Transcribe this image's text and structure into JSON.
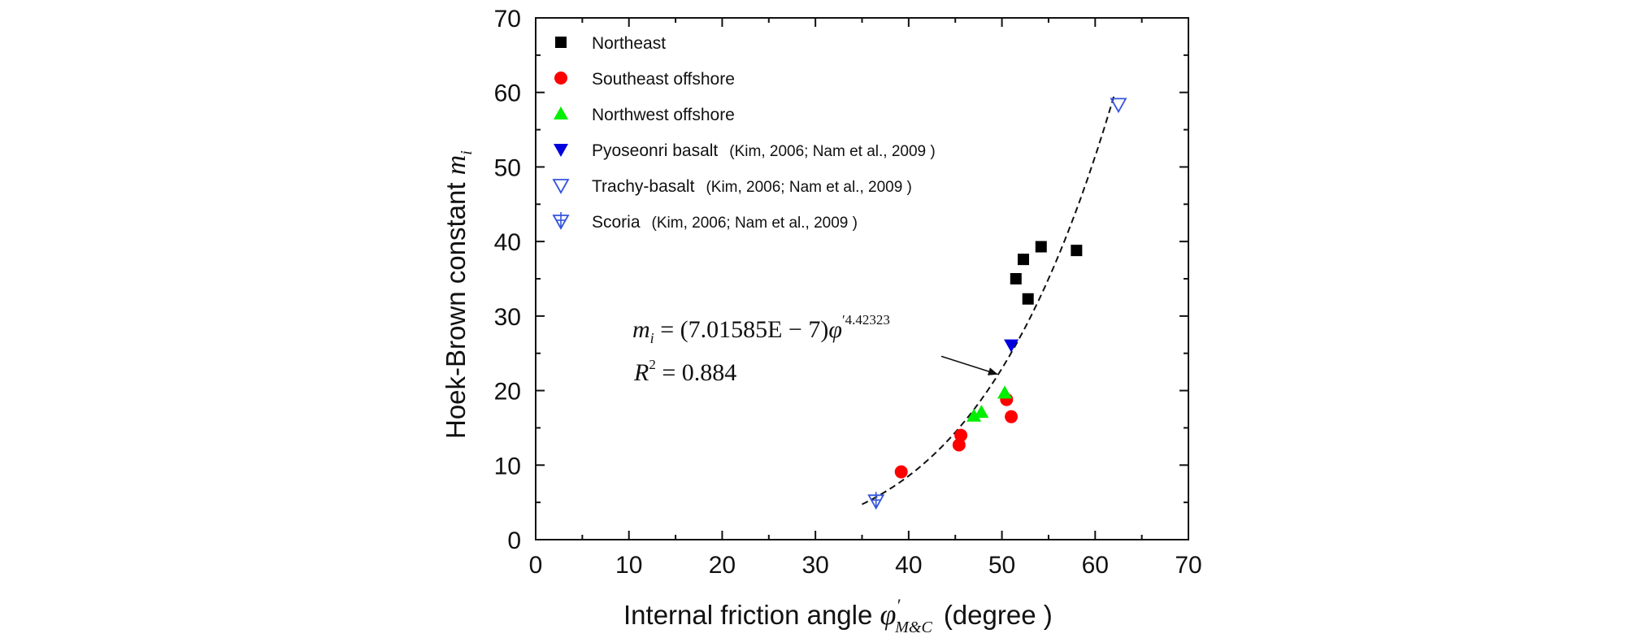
{
  "chart_data": {
    "type": "scatter",
    "title": "",
    "xlabel": "Internal friction angle φ'_M&C (degree)",
    "xlabel_parts": {
      "main": "Internal friction angle ",
      "symbol": "φ",
      "prime": "′",
      "subscript": "M&C",
      "unit": "(degree )"
    },
    "ylabel": "Hoek-Brown constant m_i",
    "ylabel_parts": {
      "main": "Hoek-Brown constant ",
      "symbol": "m",
      "subscript": "i"
    },
    "xlim": [
      0,
      70
    ],
    "ylim": [
      0,
      70
    ],
    "xticks": [
      "0",
      "10",
      "20",
      "30",
      "40",
      "50",
      "60",
      "70"
    ],
    "yticks": [
      "0",
      "10",
      "20",
      "30",
      "40",
      "50",
      "60",
      "70"
    ],
    "grid": false,
    "legend_position": "top-left",
    "series": [
      {
        "name": "Northeast",
        "cite": "",
        "marker": "square-filled",
        "color": "#000000",
        "points": [
          [
            51.5,
            35.0
          ],
          [
            52.3,
            37.6
          ],
          [
            52.8,
            32.3
          ],
          [
            54.2,
            39.3
          ],
          [
            58.0,
            38.8
          ]
        ]
      },
      {
        "name": "Southeast offshore",
        "cite": "",
        "marker": "circle-filled",
        "color": "#ff0000",
        "points": [
          [
            39.2,
            9.1
          ],
          [
            45.4,
            12.7
          ],
          [
            45.6,
            14.0
          ],
          [
            50.5,
            18.8
          ],
          [
            51.0,
            16.5
          ]
        ]
      },
      {
        "name": "Northwest offshore",
        "cite": "",
        "marker": "triangle-up-filled",
        "color": "#00ee00",
        "points": [
          [
            47.0,
            16.6
          ],
          [
            47.8,
            17.1
          ],
          [
            50.3,
            19.7
          ]
        ]
      },
      {
        "name": "Pyoseonri basalt",
        "cite": "(Kim, 2006; Nam et al., 2009 )",
        "marker": "triangle-down-filled",
        "color": "#0000dd",
        "points": [
          [
            51.0,
            26.1
          ]
        ]
      },
      {
        "name": "Trachy-basalt",
        "cite": "(Kim, 2006; Nam et al., 2009 )",
        "marker": "triangle-down-open",
        "color": "#3355dd",
        "points": [
          [
            62.5,
            58.4
          ]
        ]
      },
      {
        "name": "Scoria",
        "cite": "(Kim, 2006; Nam et al., 2009 )",
        "marker": "triangle-down-cross",
        "color": "#3355dd",
        "points": [
          [
            36.5,
            5.2
          ]
        ]
      }
    ],
    "fit_curve": {
      "coefficient": 7.01585e-07,
      "exponent": 4.42323,
      "r2": 0.884,
      "x_range": [
        35,
        62
      ],
      "style": "dashed"
    },
    "annotation": {
      "equation_lhs": "m",
      "equation_lhs_sub": "i",
      "equation_eq": " = ",
      "equation_coef": "(7.01585E − 7)",
      "equation_phi": "φ",
      "equation_exponent": "′4.42323",
      "r2_label": "R",
      "r2_sup": "2",
      "r2_value": " = 0.884",
      "arrow_from": [
        43.5,
        24.6
      ],
      "arrow_to": [
        49.5,
        22.2
      ]
    }
  }
}
